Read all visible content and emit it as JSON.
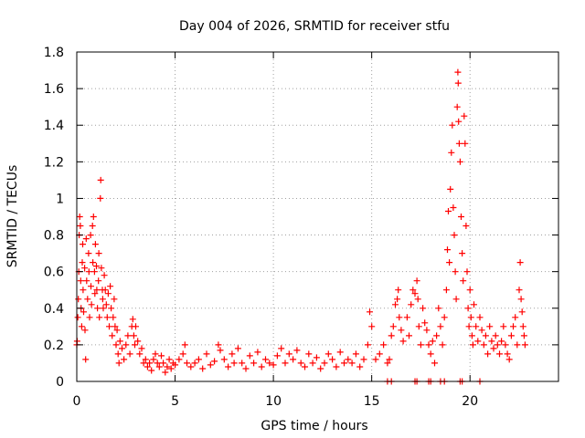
{
  "chart_data": {
    "type": "scatter",
    "title": "Day 004 of 2026, SRMTID for receiver stfu",
    "xlabel": "GPS time / hours",
    "ylabel": "SRMTID / TECUs",
    "xlim": [
      0,
      24.5
    ],
    "ylim": [
      0,
      1.8
    ],
    "xticks": [
      0,
      5,
      10,
      15,
      20
    ],
    "yticks": [
      0,
      0.2,
      0.4,
      0.6,
      0.8,
      1,
      1.2,
      1.4,
      1.6,
      1.8
    ],
    "ytick_labels": [
      "0",
      "0.2",
      "0.4",
      "0.6",
      "0.8",
      "1",
      "1.2",
      "1.4",
      "1.6",
      "1.8"
    ],
    "grid": true,
    "marker": "+",
    "color": "#ff0000",
    "series": [
      {
        "name": "SRMTID",
        "points": [
          [
            0.0,
            0.2
          ],
          [
            0.02,
            0.22
          ],
          [
            0.05,
            0.35
          ],
          [
            0.08,
            0.45
          ],
          [
            0.1,
            0.6
          ],
          [
            0.12,
            0.8
          ],
          [
            0.15,
            0.9
          ],
          [
            0.18,
            0.85
          ],
          [
            0.2,
            0.55
          ],
          [
            0.22,
            0.4
          ],
          [
            0.25,
            0.3
          ],
          [
            0.28,
            0.65
          ],
          [
            0.3,
            0.75
          ],
          [
            0.32,
            0.5
          ],
          [
            0.35,
            0.38
          ],
          [
            0.4,
            0.62
          ],
          [
            0.42,
            0.28
          ],
          [
            0.45,
            0.12
          ],
          [
            0.48,
            0.78
          ],
          [
            0.5,
            0.55
          ],
          [
            0.55,
            0.45
          ],
          [
            0.6,
            0.7
          ],
          [
            0.62,
            0.6
          ],
          [
            0.65,
            0.35
          ],
          [
            0.7,
            0.8
          ],
          [
            0.72,
            0.52
          ],
          [
            0.75,
            0.42
          ],
          [
            0.8,
            0.85
          ],
          [
            0.82,
            0.65
          ],
          [
            0.85,
            0.9
          ],
          [
            0.9,
            0.6
          ],
          [
            0.92,
            0.48
          ],
          [
            0.95,
            0.75
          ],
          [
            1.0,
            0.63
          ],
          [
            1.02,
            0.5
          ],
          [
            1.05,
            0.4
          ],
          [
            1.1,
            0.55
          ],
          [
            1.12,
            0.7
          ],
          [
            1.15,
            0.35
          ],
          [
            1.2,
            1.0
          ],
          [
            1.22,
            1.1
          ],
          [
            1.25,
            0.62
          ],
          [
            1.3,
            0.5
          ],
          [
            1.32,
            0.45
          ],
          [
            1.35,
            0.4
          ],
          [
            1.4,
            0.58
          ],
          [
            1.45,
            0.5
          ],
          [
            1.5,
            0.42
          ],
          [
            1.55,
            0.35
          ],
          [
            1.6,
            0.48
          ],
          [
            1.65,
            0.3
          ],
          [
            1.7,
            0.52
          ],
          [
            1.75,
            0.4
          ],
          [
            1.8,
            0.25
          ],
          [
            1.85,
            0.35
          ],
          [
            1.9,
            0.45
          ],
          [
            1.95,
            0.3
          ],
          [
            2.0,
            0.2
          ],
          [
            2.05,
            0.28
          ],
          [
            2.1,
            0.15
          ],
          [
            2.15,
            0.1
          ],
          [
            2.2,
            0.22
          ],
          [
            2.3,
            0.18
          ],
          [
            2.4,
            0.12
          ],
          [
            2.5,
            0.2
          ],
          [
            2.6,
            0.25
          ],
          [
            2.7,
            0.15
          ],
          [
            2.8,
            0.3
          ],
          [
            2.85,
            0.34
          ],
          [
            2.9,
            0.25
          ],
          [
            2.95,
            0.2
          ],
          [
            3.0,
            0.3
          ],
          [
            3.1,
            0.22
          ],
          [
            3.2,
            0.15
          ],
          [
            3.3,
            0.18
          ],
          [
            3.4,
            0.1
          ],
          [
            3.5,
            0.12
          ],
          [
            3.6,
            0.08
          ],
          [
            3.7,
            0.1
          ],
          [
            3.8,
            0.06
          ],
          [
            3.9,
            0.12
          ],
          [
            4.0,
            0.15
          ],
          [
            4.1,
            0.1
          ],
          [
            4.2,
            0.08
          ],
          [
            4.3,
            0.14
          ],
          [
            4.4,
            0.1
          ],
          [
            4.5,
            0.05
          ],
          [
            4.6,
            0.08
          ],
          [
            4.7,
            0.12
          ],
          [
            4.8,
            0.07
          ],
          [
            4.9,
            0.1
          ],
          [
            5.0,
            0.09
          ],
          [
            5.2,
            0.12
          ],
          [
            5.4,
            0.15
          ],
          [
            5.5,
            0.2
          ],
          [
            5.6,
            0.1
          ],
          [
            5.8,
            0.08
          ],
          [
            6.0,
            0.1
          ],
          [
            6.2,
            0.12
          ],
          [
            6.4,
            0.07
          ],
          [
            6.6,
            0.15
          ],
          [
            6.8,
            0.09
          ],
          [
            7.0,
            0.11
          ],
          [
            7.2,
            0.2
          ],
          [
            7.3,
            0.17
          ],
          [
            7.5,
            0.12
          ],
          [
            7.7,
            0.08
          ],
          [
            7.9,
            0.15
          ],
          [
            8.0,
            0.1
          ],
          [
            8.2,
            0.18
          ],
          [
            8.4,
            0.1
          ],
          [
            8.6,
            0.07
          ],
          [
            8.8,
            0.14
          ],
          [
            9.0,
            0.1
          ],
          [
            9.2,
            0.16
          ],
          [
            9.4,
            0.08
          ],
          [
            9.6,
            0.12
          ],
          [
            9.8,
            0.1
          ],
          [
            10.0,
            0.09
          ],
          [
            10.2,
            0.14
          ],
          [
            10.4,
            0.18
          ],
          [
            10.6,
            0.1
          ],
          [
            10.8,
            0.15
          ],
          [
            11.0,
            0.12
          ],
          [
            11.2,
            0.17
          ],
          [
            11.4,
            0.1
          ],
          [
            11.6,
            0.08
          ],
          [
            11.8,
            0.15
          ],
          [
            12.0,
            0.1
          ],
          [
            12.2,
            0.13
          ],
          [
            12.4,
            0.07
          ],
          [
            12.6,
            0.1
          ],
          [
            12.8,
            0.15
          ],
          [
            13.0,
            0.12
          ],
          [
            13.2,
            0.08
          ],
          [
            13.4,
            0.16
          ],
          [
            13.6,
            0.1
          ],
          [
            13.8,
            0.12
          ],
          [
            14.0,
            0.1
          ],
          [
            14.2,
            0.15
          ],
          [
            14.4,
            0.08
          ],
          [
            14.6,
            0.12
          ],
          [
            14.8,
            0.2
          ],
          [
            14.9,
            0.38
          ],
          [
            15.0,
            0.3
          ],
          [
            15.2,
            0.12
          ],
          [
            15.4,
            0.15
          ],
          [
            15.6,
            0.2
          ],
          [
            15.8,
            0.1
          ],
          [
            15.9,
            0.12
          ],
          [
            16.0,
            0.25
          ],
          [
            16.1,
            0.3
          ],
          [
            16.2,
            0.42
          ],
          [
            16.3,
            0.45
          ],
          [
            16.35,
            0.5
          ],
          [
            16.4,
            0.35
          ],
          [
            16.5,
            0.28
          ],
          [
            16.6,
            0.22
          ],
          [
            16.8,
            0.35
          ],
          [
            16.9,
            0.25
          ],
          [
            17.0,
            0.42
          ],
          [
            17.1,
            0.5
          ],
          [
            17.2,
            0.48
          ],
          [
            17.3,
            0.55
          ],
          [
            17.35,
            0.45
          ],
          [
            17.4,
            0.3
          ],
          [
            17.5,
            0.2
          ],
          [
            17.6,
            0.4
          ],
          [
            17.7,
            0.32
          ],
          [
            17.8,
            0.28
          ],
          [
            17.9,
            0.2
          ],
          [
            18.0,
            0.15
          ],
          [
            18.1,
            0.22
          ],
          [
            18.2,
            0.1
          ],
          [
            18.3,
            0.25
          ],
          [
            18.4,
            0.4
          ],
          [
            18.5,
            0.3
          ],
          [
            18.6,
            0.2
          ],
          [
            18.7,
            0.35
          ],
          [
            18.8,
            0.5
          ],
          [
            18.85,
            0.72
          ],
          [
            18.9,
            0.93
          ],
          [
            18.95,
            0.65
          ],
          [
            19.0,
            1.05
          ],
          [
            19.05,
            1.25
          ],
          [
            19.1,
            1.4
          ],
          [
            19.15,
            0.95
          ],
          [
            19.2,
            0.8
          ],
          [
            19.25,
            0.6
          ],
          [
            19.3,
            0.45
          ],
          [
            19.35,
            1.5
          ],
          [
            19.38,
            1.69
          ],
          [
            19.4,
            1.63
          ],
          [
            19.42,
            1.42
          ],
          [
            19.45,
            1.3
          ],
          [
            19.5,
            1.2
          ],
          [
            19.55,
            0.9
          ],
          [
            19.6,
            0.7
          ],
          [
            19.65,
            0.55
          ],
          [
            19.7,
            1.45
          ],
          [
            19.75,
            1.3
          ],
          [
            19.8,
            0.85
          ],
          [
            19.85,
            0.6
          ],
          [
            19.9,
            0.4
          ],
          [
            19.95,
            0.3
          ],
          [
            20.0,
            0.5
          ],
          [
            20.05,
            0.35
          ],
          [
            20.1,
            0.25
          ],
          [
            20.15,
            0.2
          ],
          [
            20.2,
            0.42
          ],
          [
            20.3,
            0.3
          ],
          [
            20.4,
            0.22
          ],
          [
            20.5,
            0.35
          ],
          [
            20.6,
            0.28
          ],
          [
            20.7,
            0.2
          ],
          [
            20.8,
            0.25
          ],
          [
            20.9,
            0.15
          ],
          [
            21.0,
            0.3
          ],
          [
            21.1,
            0.22
          ],
          [
            21.2,
            0.18
          ],
          [
            21.3,
            0.25
          ],
          [
            21.4,
            0.2
          ],
          [
            21.5,
            0.15
          ],
          [
            21.6,
            0.22
          ],
          [
            21.7,
            0.3
          ],
          [
            21.8,
            0.2
          ],
          [
            21.9,
            0.15
          ],
          [
            22.0,
            0.12
          ],
          [
            22.1,
            0.25
          ],
          [
            22.2,
            0.3
          ],
          [
            22.3,
            0.35
          ],
          [
            22.4,
            0.2
          ],
          [
            22.5,
            0.5
          ],
          [
            22.55,
            0.65
          ],
          [
            22.6,
            0.45
          ],
          [
            22.65,
            0.38
          ],
          [
            22.7,
            0.3
          ],
          [
            22.75,
            0.25
          ],
          [
            22.8,
            0.2
          ],
          [
            15.8,
            0.0
          ],
          [
            16.0,
            0.0
          ],
          [
            17.2,
            0.0
          ],
          [
            17.3,
            0.0
          ],
          [
            17.9,
            0.0
          ],
          [
            18.0,
            0.0
          ],
          [
            18.5,
            0.0
          ],
          [
            18.7,
            0.0
          ],
          [
            19.5,
            0.0
          ],
          [
            19.6,
            0.0
          ],
          [
            20.5,
            0.0
          ]
        ]
      }
    ]
  }
}
